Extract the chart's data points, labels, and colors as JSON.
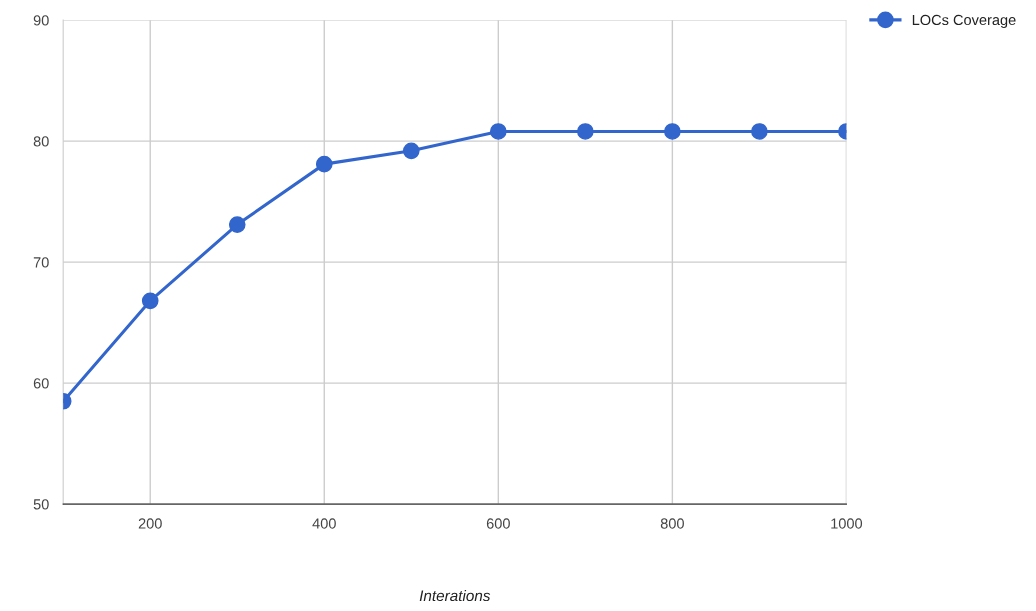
{
  "chart_data": {
    "type": "line",
    "xlabel": "Interations",
    "x": [
      100,
      200,
      300,
      400,
      500,
      600,
      700,
      800,
      900,
      1000
    ],
    "series": [
      {
        "name": "LOCs Coverage",
        "color": "#3366cc",
        "values": [
          58.5,
          66.8,
          73.1,
          78.1,
          79.2,
          80.8,
          80.8,
          80.8,
          80.8,
          80.8
        ]
      }
    ],
    "xlim": [
      100,
      1000
    ],
    "xticks": [
      200,
      400,
      600,
      800,
      1000
    ],
    "ylim": [
      50,
      90
    ],
    "yticks": [
      50,
      60,
      70,
      80,
      90
    ],
    "grid": true,
    "legend": "top right",
    "marker": "circle",
    "line_style": "solid"
  }
}
